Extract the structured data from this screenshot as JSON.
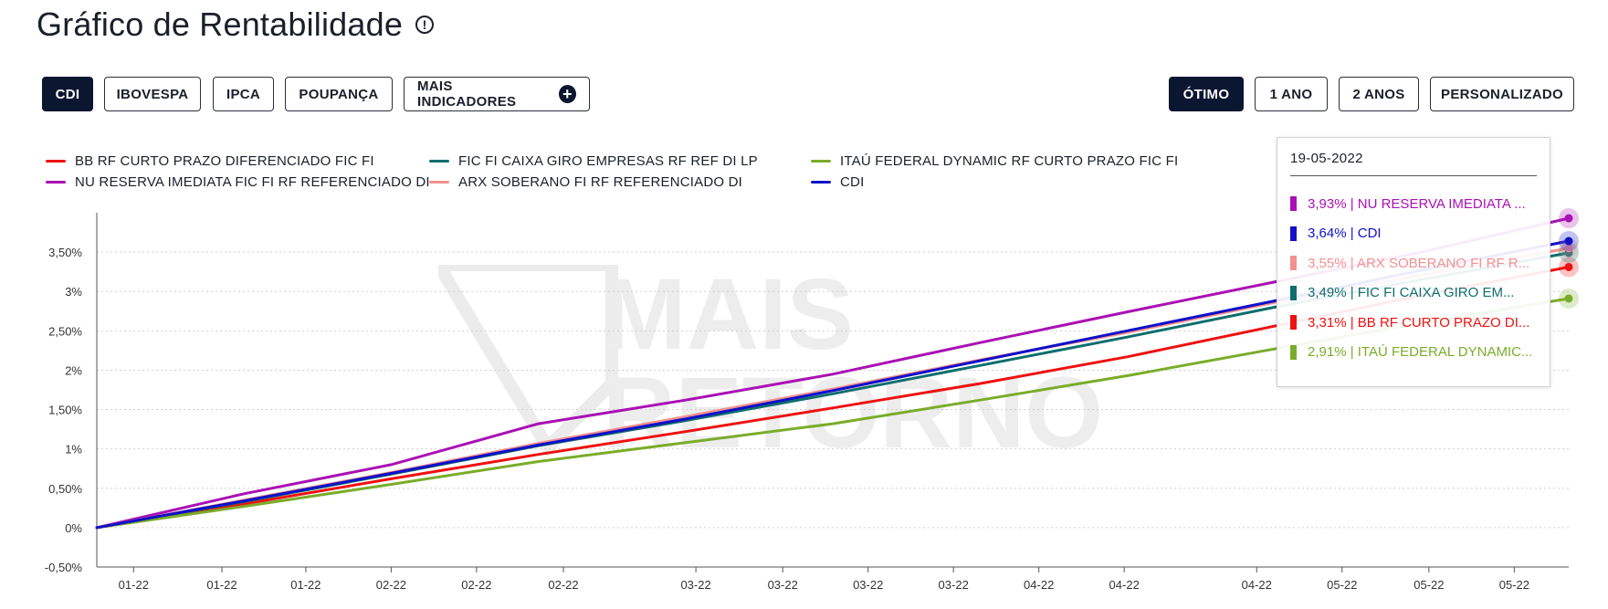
{
  "header": {
    "title": "Gráfico de Rentabilidade",
    "info_icon": "!"
  },
  "indicators": {
    "buttons": [
      {
        "label": "CDI",
        "active": true
      },
      {
        "label": "IBOVESPA",
        "active": false
      },
      {
        "label": "IPCA",
        "active": false
      },
      {
        "label": "POUPANÇA",
        "active": false
      }
    ],
    "more": {
      "label": "MAIS INDICADORES",
      "icon": "+"
    }
  },
  "periods": {
    "buttons": [
      {
        "label": "ÓTIMO",
        "active": true
      },
      {
        "label": "1 ANO",
        "active": false
      },
      {
        "label": "2 ANOS",
        "active": false
      },
      {
        "label": "PERSONALIZADO",
        "active": false
      }
    ]
  },
  "legend": [
    {
      "label": "BB RF CURTO PRAZO DIFERENCIADO FIC FI",
      "color": "#ee1111"
    },
    {
      "label": "FIC FI CAIXA GIRO EMPRESAS RF REF DI LP",
      "color": "#0f6e6e"
    },
    {
      "label": "ITAÚ FEDERAL DYNAMIC RF CURTO PRAZO FIC FI",
      "color": "#7aac2a"
    },
    {
      "label": "NU RESERVA IMEDIATA FIC FI RF REFERENCIADO DI",
      "color": "#aa10b4"
    },
    {
      "label": "ARX SOBERANO FI RF REFERENCIADO DI",
      "color": "#f39090"
    },
    {
      "label": "CDI",
      "color": "#1010c8"
    }
  ],
  "watermark": {
    "line1": "MAIS",
    "line2": "RETORNO"
  },
  "tooltip": {
    "date": "19-05-2022",
    "rows": [
      {
        "text": "3,93% | NU RESERVA IMEDIATA ...",
        "color": "#aa10b4"
      },
      {
        "text": "3,64% | CDI",
        "color": "#1010c8"
      },
      {
        "text": "3,55% | ARX SOBERANO FI RF R...",
        "color": "#f39090"
      },
      {
        "text": "3,49% | FIC FI CAIXA GIRO EM...",
        "color": "#0f6e6e"
      },
      {
        "text": "3,31% | BB RF CURTO PRAZO DI...",
        "color": "#ee1111"
      },
      {
        "text": "2,91% | ITAÚ FEDERAL DYNAMIC...",
        "color": "#7aac2a"
      }
    ]
  },
  "chart_data": {
    "type": "line",
    "title": "Gráfico de Rentabilidade",
    "xlabel": "",
    "ylabel": "",
    "ylim": [
      -0.5,
      4.0
    ],
    "y_ticks": [
      -0.5,
      0,
      0.5,
      1.0,
      1.5,
      2.0,
      2.5,
      3.0,
      3.5
    ],
    "y_tick_labels": [
      "-0,50%",
      "0%",
      "0,50%",
      "1%",
      "1,50%",
      "2%",
      "2,50%",
      "3%",
      "3,50%"
    ],
    "grid": true,
    "x_range": [
      0,
      100
    ],
    "x_ticks": [
      2.5,
      8.5,
      14.2,
      20.0,
      25.8,
      31.7,
      40.7,
      46.6,
      52.4,
      58.2,
      64.0,
      69.8,
      78.8,
      84.6,
      90.5,
      96.3
    ],
    "x_tick_labels": [
      "01-22",
      "01-22",
      "01-22",
      "02-22",
      "02-22",
      "02-22",
      "03-22",
      "03-22",
      "03-22",
      "03-22",
      "04-22",
      "04-22",
      "04-22",
      "05-22",
      "05-22",
      "05-22"
    ],
    "series": [
      {
        "name": "BB RF CURTO PRAZO DIFERENCIADO FIC FI",
        "color": "#ee1111",
        "x": [
          0,
          10,
          20,
          30,
          40,
          50,
          60,
          70,
          80,
          90,
          100
        ],
        "y": [
          0,
          0.3,
          0.62,
          0.93,
          1.22,
          1.52,
          1.83,
          2.17,
          2.56,
          2.95,
          3.31
        ]
      },
      {
        "name": "FIC FI CAIXA GIRO EMPRESAS RF REF DI LP",
        "color": "#0f6e6e",
        "x": [
          0,
          10,
          20,
          30,
          40,
          50,
          60,
          70,
          80,
          90,
          100
        ],
        "y": [
          0,
          0.33,
          0.68,
          1.04,
          1.36,
          1.7,
          2.06,
          2.42,
          2.8,
          3.15,
          3.49
        ]
      },
      {
        "name": "ITAÚ FEDERAL DYNAMIC RF CURTO PRAZO FIC FI",
        "color": "#7aac2a",
        "x": [
          0,
          10,
          20,
          30,
          40,
          50,
          60,
          70,
          80,
          90,
          100
        ],
        "y": [
          0,
          0.27,
          0.55,
          0.84,
          1.08,
          1.32,
          1.62,
          1.93,
          2.27,
          2.6,
          2.91
        ]
      },
      {
        "name": "NU RESERVA IMEDIATA FIC FI RF REFERENCIADO DI",
        "color": "#aa10b4",
        "x": [
          0,
          10,
          20,
          30,
          40,
          50,
          60,
          70,
          80,
          90,
          100
        ],
        "y": [
          0,
          0.43,
          0.8,
          1.32,
          1.62,
          1.95,
          2.35,
          2.74,
          3.12,
          3.5,
          3.93
        ]
      },
      {
        "name": "ARX SOBERANO FI RF REFERENCIADO DI",
        "color": "#f39090",
        "x": [
          0,
          10,
          20,
          30,
          40,
          50,
          60,
          70,
          80,
          90,
          100
        ],
        "y": [
          0,
          0.35,
          0.7,
          1.07,
          1.41,
          1.76,
          2.13,
          2.48,
          2.86,
          3.21,
          3.55
        ]
      },
      {
        "name": "CDI",
        "color": "#1010c8",
        "x": [
          0,
          10,
          20,
          30,
          40,
          50,
          60,
          70,
          80,
          90,
          100
        ],
        "y": [
          0,
          0.34,
          0.69,
          1.05,
          1.38,
          1.74,
          2.12,
          2.5,
          2.88,
          3.27,
          3.64
        ]
      }
    ]
  }
}
